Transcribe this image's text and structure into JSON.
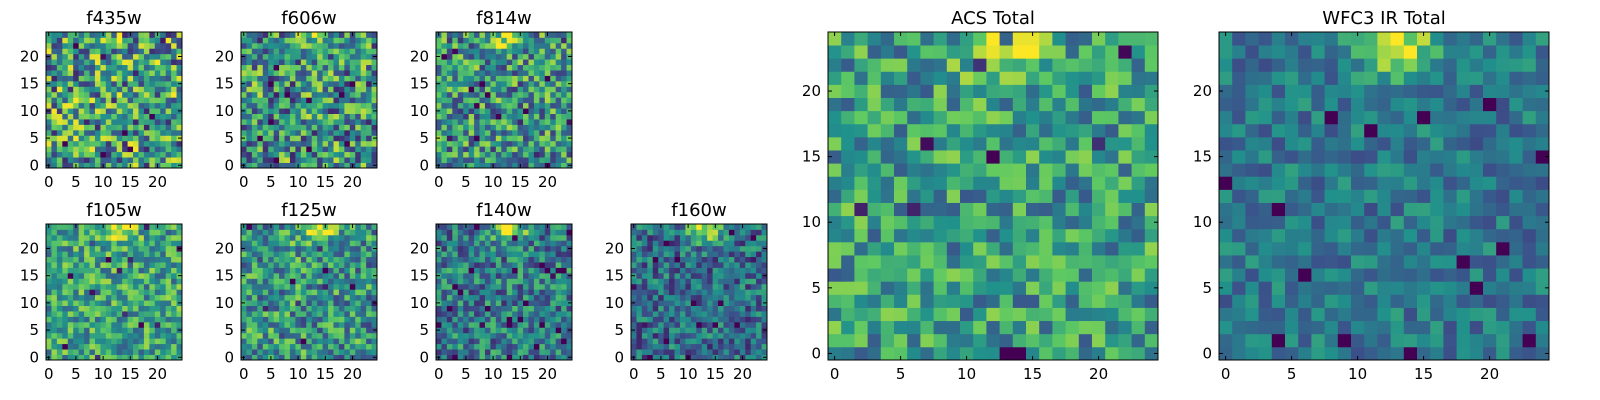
{
  "figure": {
    "colormap": "viridis",
    "colormap_stops": [
      "#440154",
      "#3b528b",
      "#21918c",
      "#5ec962",
      "#fde725"
    ]
  },
  "chart_data": [
    {
      "type": "heatmap",
      "title": "f435w",
      "grid_size": [
        25,
        25
      ],
      "x_ticks": [
        "0",
        "5",
        "10",
        "15",
        "20"
      ],
      "y_ticks": [
        "0",
        "5",
        "10",
        "15",
        "20"
      ],
      "xlim": [
        -0.5,
        24.5
      ],
      "ylim": [
        -0.5,
        24.5
      ],
      "grid": false,
      "seed": 11,
      "peak": 0.15,
      "noise": 0.55,
      "base": 0.55
    },
    {
      "type": "heatmap",
      "title": "f606w",
      "grid_size": [
        25,
        25
      ],
      "x_ticks": [
        "0",
        "5",
        "10",
        "15",
        "20"
      ],
      "y_ticks": [
        "0",
        "5",
        "10",
        "15",
        "20"
      ],
      "xlim": [
        -0.5,
        24.5
      ],
      "ylim": [
        -0.5,
        24.5
      ],
      "grid": false,
      "seed": 23,
      "peak": 0.3,
      "noise": 0.5,
      "base": 0.52
    },
    {
      "type": "heatmap",
      "title": "f814w",
      "grid_size": [
        25,
        25
      ],
      "x_ticks": [
        "0",
        "5",
        "10",
        "15",
        "20"
      ],
      "y_ticks": [
        "0",
        "5",
        "10",
        "15",
        "20"
      ],
      "xlim": [
        -0.5,
        24.5
      ],
      "ylim": [
        -0.5,
        24.5
      ],
      "grid": false,
      "seed": 37,
      "peak": 0.4,
      "noise": 0.45,
      "base": 0.52
    },
    {
      "type": "heatmap",
      "title": "f105w",
      "grid_size": [
        25,
        25
      ],
      "x_ticks": [
        "0",
        "5",
        "10",
        "15",
        "20"
      ],
      "y_ticks": [
        "0",
        "5",
        "10",
        "15",
        "20"
      ],
      "xlim": [
        -0.5,
        24.5
      ],
      "ylim": [
        -0.5,
        24.5
      ],
      "grid": false,
      "seed": 41,
      "peak": 0.45,
      "noise": 0.35,
      "base": 0.58
    },
    {
      "type": "heatmap",
      "title": "f125w",
      "grid_size": [
        25,
        25
      ],
      "x_ticks": [
        "0",
        "5",
        "10",
        "15",
        "20"
      ],
      "y_ticks": [
        "0",
        "5",
        "10",
        "15",
        "20"
      ],
      "xlim": [
        -0.5,
        24.5
      ],
      "ylim": [
        -0.5,
        24.5
      ],
      "grid": false,
      "seed": 53,
      "peak": 0.5,
      "noise": 0.4,
      "base": 0.52
    },
    {
      "type": "heatmap",
      "title": "f140w",
      "grid_size": [
        25,
        25
      ],
      "x_ticks": [
        "0",
        "5",
        "10",
        "15",
        "20"
      ],
      "y_ticks": [
        "0",
        "5",
        "10",
        "15",
        "20"
      ],
      "xlim": [
        -0.5,
        24.5
      ],
      "ylim": [
        -0.5,
        24.5
      ],
      "grid": false,
      "seed": 67,
      "peak": 0.55,
      "noise": 0.35,
      "base": 0.42
    },
    {
      "type": "heatmap",
      "title": "f160w",
      "grid_size": [
        25,
        25
      ],
      "x_ticks": [
        "0",
        "5",
        "10",
        "15",
        "20"
      ],
      "y_ticks": [
        "0",
        "5",
        "10",
        "15",
        "20"
      ],
      "xlim": [
        -0.5,
        24.5
      ],
      "ylim": [
        -0.5,
        24.5
      ],
      "grid": false,
      "seed": 79,
      "peak": 0.6,
      "noise": 0.32,
      "base": 0.36
    },
    {
      "type": "heatmap",
      "title": "ACS Total",
      "grid_size": [
        25,
        25
      ],
      "x_ticks": [
        "0",
        "5",
        "10",
        "15",
        "20"
      ],
      "y_ticks": [
        "0",
        "5",
        "10",
        "15",
        "20"
      ],
      "xlim": [
        -0.5,
        24.5
      ],
      "ylim": [
        -0.5,
        24.5
      ],
      "grid": false,
      "seed": 97,
      "peak": 0.45,
      "noise": 0.35,
      "base": 0.55
    },
    {
      "type": "heatmap",
      "title": "WFC3 IR Total",
      "grid_size": [
        25,
        25
      ],
      "x_ticks": [
        "0",
        "5",
        "10",
        "15",
        "20"
      ],
      "y_ticks": [
        "0",
        "5",
        "10",
        "15",
        "20"
      ],
      "xlim": [
        -0.5,
        24.5
      ],
      "ylim": [
        -0.5,
        24.5
      ],
      "grid": false,
      "seed": 131,
      "peak": 0.55,
      "noise": 0.22,
      "base": 0.4
    }
  ]
}
